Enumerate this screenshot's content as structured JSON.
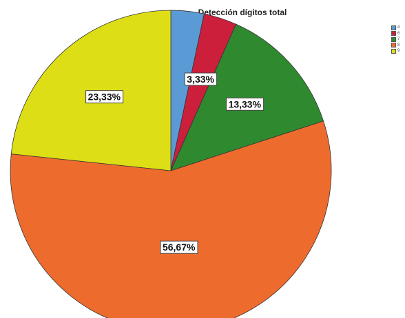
{
  "chart_data": {
    "type": "pie",
    "title": "Detección dígitos total",
    "slices": [
      {
        "name": "4",
        "value": 3.33,
        "label": "",
        "color": "#5b9bd5"
      },
      {
        "name": "6",
        "value": 3.33,
        "label": "3,33%",
        "color": "#cc1f3c"
      },
      {
        "name": "7",
        "value": 13.33,
        "label": "13,33%",
        "color": "#2f8a2f"
      },
      {
        "name": "8",
        "value": 56.67,
        "label": "56,67%",
        "color": "#ee6b2e"
      },
      {
        "name": "9",
        "value": 23.33,
        "label": "23,33%",
        "color": "#dede16"
      }
    ],
    "start_angle": "12 o'clock",
    "direction": "clockwise",
    "legend_position": "right"
  }
}
